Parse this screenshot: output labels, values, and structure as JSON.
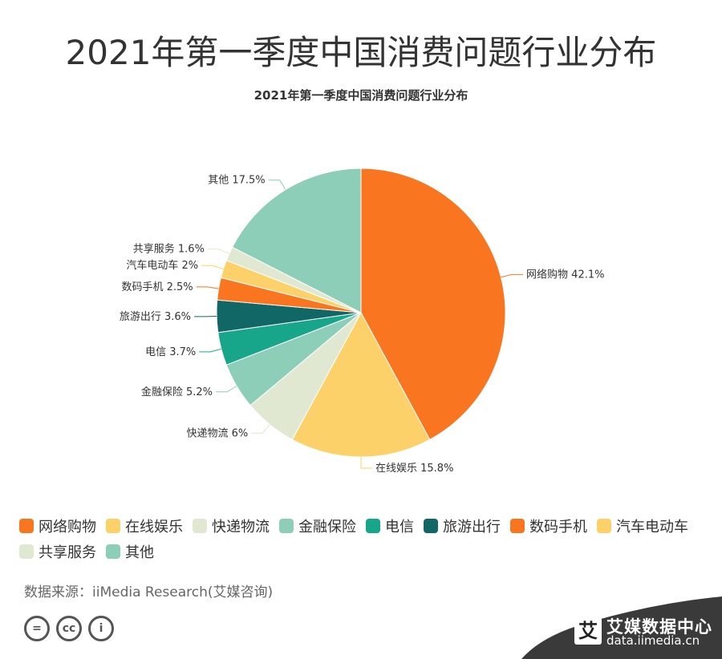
{
  "page": {
    "main_title": "2021年第一季度中国消费问题行业分布",
    "source": "数据来源：iiMedia Research(艾媒咨询)",
    "brand_name": "艾媒数据中心",
    "brand_url": "data.iimedia.cn",
    "brand_logo_glyph": "艾",
    "cc_icons": [
      "=",
      "cc",
      "i"
    ]
  },
  "chart_data": {
    "type": "pie",
    "title": "2021年第一季度中国消费问题行业分布",
    "legend_position": "bottom",
    "categories": [
      "网络购物",
      "在线娱乐",
      "快递物流",
      "金融保险",
      "电信",
      "旅游出行",
      "数码手机",
      "汽车电动车",
      "共享服务",
      "其他"
    ],
    "values": [
      42.1,
      15.8,
      6,
      5.2,
      3.7,
      3.6,
      2.5,
      2,
      1.6,
      17.5
    ],
    "labels": [
      "网络购物 42.1%",
      "在线娱乐 15.8%",
      "快递物流 6%",
      "金融保险 5.2%",
      "电信 3.7%",
      "旅游出行 3.6%",
      "数码手机 2.5%",
      "汽车电动车 2%",
      "共享服务 1.6%",
      "其他 17.5%"
    ],
    "colors": [
      "#FA7520",
      "#FCD16A",
      "#E1E8D2",
      "#8DCEB9",
      "#17A689",
      "#116766",
      "#FA7520",
      "#FCD16A",
      "#E1E8D2",
      "#8DCEB9"
    ]
  }
}
